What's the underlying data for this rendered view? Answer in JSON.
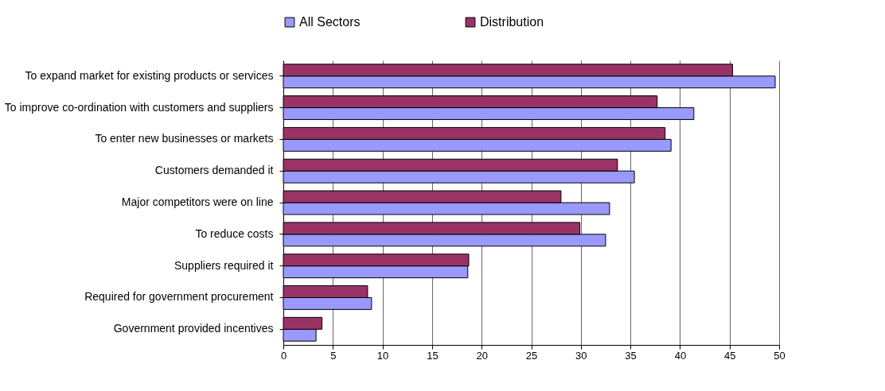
{
  "chart_data": {
    "type": "bar",
    "orientation": "horizontal",
    "categories": [
      "To expand market for existing products or services",
      "To improve co-ordination with customers and suppliers",
      "To enter new businesses or markets",
      "Customers demanded it",
      "Major competitors were on line",
      "To reduce costs",
      "Suppliers required it",
      "Required for government procurement",
      "Government provided incentives"
    ],
    "series": [
      {
        "name": "All Sectors",
        "color": "#9999ff",
        "values": [
          49.6,
          41.4,
          39.1,
          35.4,
          32.9,
          32.5,
          18.6,
          8.9,
          3.3
        ]
      },
      {
        "name": "Distribution",
        "color": "#993366",
        "values": [
          45.3,
          37.7,
          38.5,
          33.7,
          28.0,
          29.9,
          18.7,
          8.5,
          3.9
        ]
      }
    ],
    "xlim": [
      0,
      50
    ],
    "xticks": [
      0,
      5,
      10,
      15,
      20,
      25,
      30,
      35,
      40,
      45,
      50
    ],
    "grid": "x",
    "legend": "top"
  }
}
